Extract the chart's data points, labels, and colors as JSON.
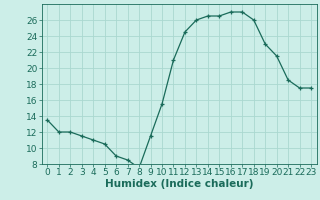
{
  "x": [
    0,
    1,
    2,
    3,
    4,
    5,
    6,
    7,
    8,
    9,
    10,
    11,
    12,
    13,
    14,
    15,
    16,
    17,
    18,
    19,
    20,
    21,
    22,
    23
  ],
  "y": [
    13.5,
    12.0,
    12.0,
    11.5,
    11.0,
    10.5,
    9.0,
    8.5,
    7.5,
    11.5,
    15.5,
    21.0,
    24.5,
    26.0,
    26.5,
    26.5,
    27.0,
    27.0,
    26.0,
    23.0,
    21.5,
    18.5,
    17.5,
    17.5
  ],
  "line_color": "#1a6b5a",
  "marker": "+",
  "marker_size": 3,
  "bg_color": "#cceee8",
  "grid_color": "#aad8d0",
  "xlabel": "Humidex (Indice chaleur)",
  "ylim": [
    8,
    28
  ],
  "yticks": [
    8,
    10,
    12,
    14,
    16,
    18,
    20,
    22,
    24,
    26
  ],
  "xticks": [
    0,
    1,
    2,
    3,
    4,
    5,
    6,
    7,
    8,
    9,
    10,
    11,
    12,
    13,
    14,
    15,
    16,
    17,
    18,
    19,
    20,
    21,
    22,
    23
  ],
  "xlabel_fontsize": 7.5,
  "tick_fontsize": 6.5,
  "axis_color": "#1a6b5a",
  "lw": 0.9
}
